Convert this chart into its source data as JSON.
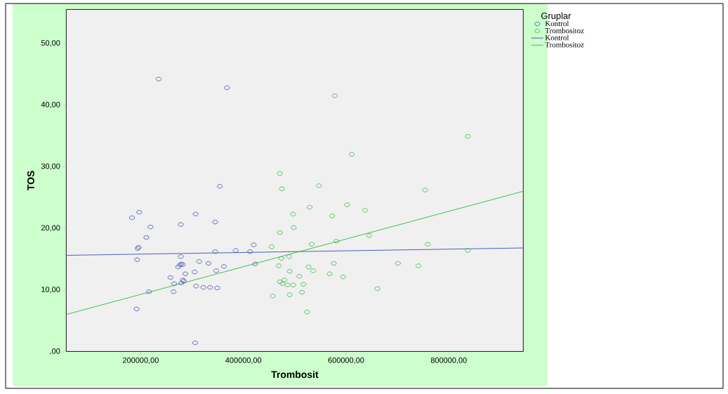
{
  "chart_data": {
    "type": "scatter",
    "xlabel": "Trombosit",
    "ylabel": "TOS",
    "legend_title": "Gruplar",
    "legend": "right",
    "xlim": [
      55000,
      945000
    ],
    "ylim": [
      0,
      55.5
    ],
    "xticks": [
      {
        "value": 200000,
        "label": "200000,00"
      },
      {
        "value": 400000,
        "label": "400000,00"
      },
      {
        "value": 600000,
        "label": "600000,00"
      },
      {
        "value": 800000,
        "label": "800000,00"
      }
    ],
    "yticks": [
      {
        "value": 0,
        "label": ",00"
      },
      {
        "value": 10,
        "label": "10,00"
      },
      {
        "value": 20,
        "label": "20,00"
      },
      {
        "value": 30,
        "label": "30,00"
      },
      {
        "value": 40,
        "label": "40,00"
      },
      {
        "value": 50,
        "label": "50,00"
      }
    ],
    "series": [
      {
        "name": "Kontrol",
        "type": "scatter",
        "marker": "circle",
        "color": "#4a5fb8",
        "x": [
          235000,
          368000,
          354000,
          183000,
          197000,
          307000,
          278000,
          219000,
          345000,
          211000,
          196000,
          194000,
          193000,
          278000,
          345000,
          385000,
          413000,
          420000,
          423000,
          279000,
          282000,
          276000,
          273000,
          314000,
          332000,
          362000,
          347000,
          305000,
          287000,
          258000,
          265000,
          279000,
          282000,
          284000,
          308000,
          322000,
          335000,
          349000,
          216000,
          264000,
          192000,
          306000
        ],
        "values": [
          44.2,
          42.8,
          26.8,
          21.7,
          22.6,
          22.3,
          20.6,
          20.2,
          21.0,
          18.5,
          16.9,
          16.7,
          14.9,
          15.4,
          16.2,
          16.4,
          16.2,
          17.3,
          14.2,
          14.2,
          14.1,
          14.0,
          13.7,
          14.6,
          14.3,
          13.8,
          13.1,
          12.9,
          12.6,
          12.0,
          11.0,
          11.1,
          11.6,
          11.4,
          10.6,
          10.4,
          10.4,
          10.3,
          9.7,
          9.7,
          6.9,
          1.4
        ]
      },
      {
        "name": "Trombositoz",
        "type": "scatter",
        "marker": "circle",
        "color": "#3fbf4f",
        "x": [
          578000,
          837000,
          611000,
          471000,
          475000,
          547000,
          754000,
          529000,
          602000,
          637000,
          497000,
          573000,
          498000,
          471000,
          645000,
          581000,
          533000,
          759000,
          455000,
          837000,
          474000,
          489000,
          469000,
          576000,
          701000,
          741000,
          527000,
          536000,
          490000,
          568000,
          509000,
          594000,
          480000,
          471000,
          476000,
          486000,
          497000,
          517000,
          661000,
          514000,
          490000,
          457000,
          524000
        ],
        "values": [
          41.5,
          34.9,
          32.0,
          28.9,
          26.4,
          26.9,
          26.2,
          23.4,
          23.8,
          22.9,
          22.3,
          22.0,
          20.1,
          19.3,
          18.8,
          17.9,
          17.4,
          17.4,
          17.0,
          16.4,
          15.1,
          15.4,
          13.9,
          14.3,
          14.3,
          13.9,
          13.7,
          13.1,
          13.0,
          12.6,
          12.2,
          12.1,
          11.6,
          11.3,
          11.0,
          10.8,
          10.8,
          10.9,
          10.2,
          9.6,
          9.2,
          9.0,
          6.4
        ]
      },
      {
        "name": "Kontrol",
        "type": "line",
        "marker": "none",
        "color": "#4a5fb8",
        "x": [
          55000,
          945000
        ],
        "values": [
          15.6,
          16.8
        ]
      },
      {
        "name": "Trombositoz",
        "type": "line",
        "marker": "none",
        "color": "#3fbf4f",
        "x": [
          55000,
          945000
        ],
        "values": [
          6.0,
          26.0
        ]
      }
    ]
  }
}
